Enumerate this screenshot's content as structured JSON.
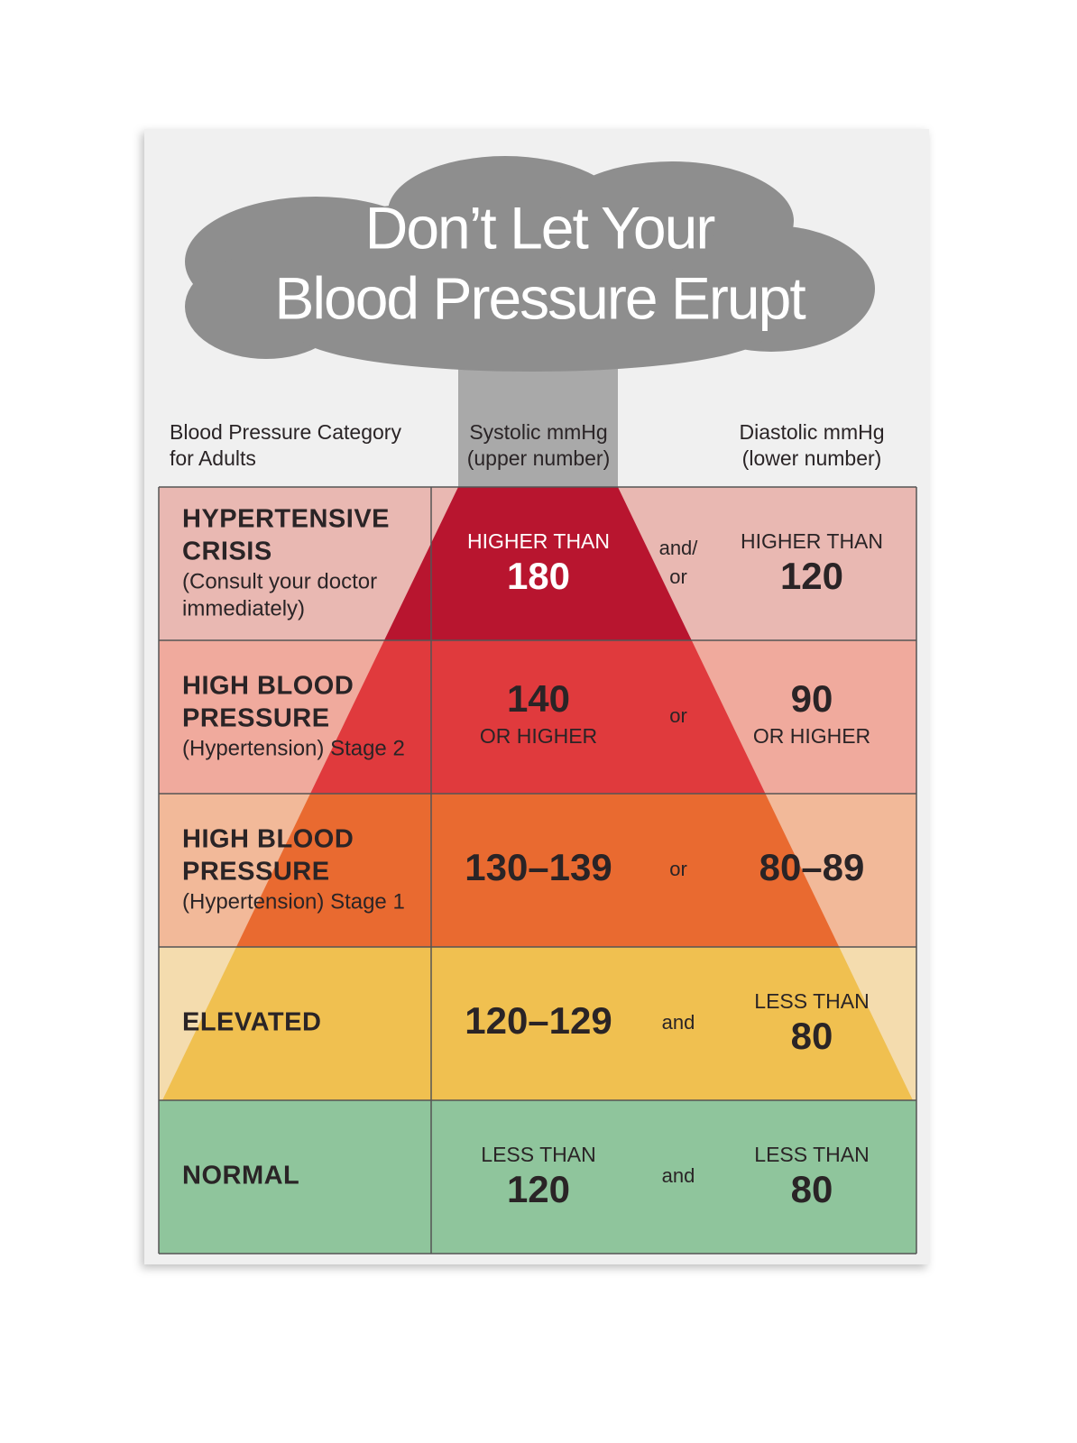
{
  "title": [
    "Don’t Let Your",
    "Blood Pressure Erupt"
  ],
  "headers": {
    "category": [
      "Blood Pressure Category",
      "for Adults"
    ],
    "systolic": [
      "Systolic mmHg",
      "(upper number)"
    ],
    "diastolic": [
      "Diastolic mmHg",
      "(lower number)"
    ]
  },
  "rows": [
    {
      "category": [
        "HYPERTENSIVE",
        "CRISIS"
      ],
      "note": [
        "(Consult your doctor",
        "immediately)"
      ],
      "systolic": [
        "HIGHER THAN",
        "180"
      ],
      "connector": [
        "and/",
        "or"
      ],
      "diastolic": [
        "HIGHER THAN",
        "120"
      ]
    },
    {
      "category": [
        "HIGH BLOOD",
        "PRESSURE"
      ],
      "note": [
        "(Hypertension) Stage 2"
      ],
      "systolic": [
        "140",
        "OR HIGHER"
      ],
      "connector": [
        "or"
      ],
      "diastolic": [
        "90",
        "OR HIGHER"
      ]
    },
    {
      "category": [
        "HIGH BLOOD",
        "PRESSURE"
      ],
      "note": [
        "(Hypertension) Stage 1"
      ],
      "systolic": [
        "130–139"
      ],
      "connector": [
        "or"
      ],
      "diastolic": [
        "80–89"
      ]
    },
    {
      "category": [
        "ELEVATED"
      ],
      "note": [],
      "systolic": [
        "120–129"
      ],
      "connector": [
        "and"
      ],
      "diastolic": [
        "LESS THAN",
        "80"
      ]
    },
    {
      "category": [
        "NORMAL"
      ],
      "note": [],
      "systolic": [
        "LESS THAN",
        "120"
      ],
      "connector": [
        "and"
      ],
      "diastolic": [
        "LESS THAN",
        "80"
      ]
    }
  ]
}
